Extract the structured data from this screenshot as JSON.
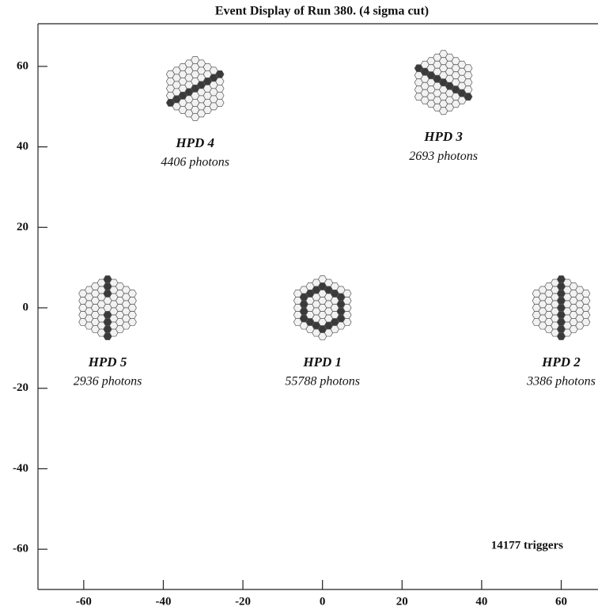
{
  "chart_data": {
    "type": "scatter",
    "title": "Event Display of Run 380. (4 sigma cut)",
    "xlim": [
      -71.5,
      70
    ],
    "ylim": [
      -70,
      70.6
    ],
    "xticks": [
      -60,
      -40,
      -20,
      0,
      20,
      40,
      60
    ],
    "yticks": [
      -60,
      -40,
      -20,
      0,
      20,
      40,
      60
    ],
    "detectors": [
      {
        "name": "HPD 4",
        "label": "4406 photons",
        "x": -32,
        "y": 54.5
      },
      {
        "name": "HPD 3",
        "label": "2693 photons",
        "x": 30.4,
        "y": 56
      },
      {
        "name": "HPD 5",
        "label": "2936 photons",
        "x": -54,
        "y": 0
      },
      {
        "name": "HPD 1",
        "label": "55788 photons",
        "x": 0,
        "y": 0
      },
      {
        "name": "HPD 2",
        "label": "3386 photons",
        "x": 60,
        "y": 0
      }
    ],
    "annotation": "14177 triggers"
  }
}
